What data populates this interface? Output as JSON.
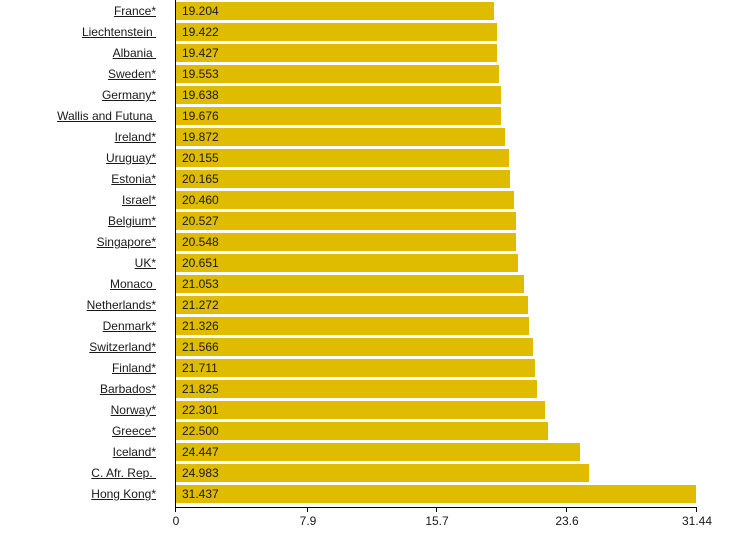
{
  "chart_data": {
    "type": "bar",
    "orientation": "horizontal",
    "title": "",
    "xlabel": "",
    "ylabel": "",
    "xlim": [
      0,
      31.44
    ],
    "bar_color": "#E0BC00",
    "categories": [
      "France*",
      "Liechtenstein ",
      "Albania ",
      "Sweden*",
      "Germany*",
      "Wallis and Futuna ",
      "Ireland*",
      "Uruguay*",
      "Estonia*",
      "Israel*",
      "Belgium*",
      "Singapore*",
      "UK*",
      "Monaco ",
      "Netherlands*",
      "Denmark*",
      "Switzerland*",
      "Finland*",
      "Barbados*",
      "Norway*",
      "Greece*",
      "Iceland*",
      "C. Afr. Rep. ",
      "Hong Kong*"
    ],
    "values": [
      19.204,
      19.422,
      19.427,
      19.553,
      19.638,
      19.676,
      19.872,
      20.155,
      20.165,
      20.46,
      20.527,
      20.548,
      20.651,
      21.053,
      21.272,
      21.326,
      21.566,
      21.711,
      21.825,
      22.301,
      22.5,
      24.447,
      24.983,
      31.437
    ],
    "value_labels": [
      "19.204",
      "19.422",
      "19.427",
      "19.553",
      "19.638",
      "19.676",
      "19.872",
      "20.155",
      "20.165",
      "20.460",
      "20.527",
      "20.548",
      "20.651",
      "21.053",
      "21.272",
      "21.326",
      "21.566",
      "21.711",
      "21.825",
      "22.301",
      "22.500",
      "24.447",
      "24.983",
      "31.437"
    ],
    "xticks": [
      0,
      7.9,
      15.7,
      23.6,
      31.44
    ],
    "xtick_labels": [
      "0",
      "7.9",
      "15.7",
      "23.6",
      "31.44"
    ],
    "grid": false,
    "legend": "none"
  }
}
